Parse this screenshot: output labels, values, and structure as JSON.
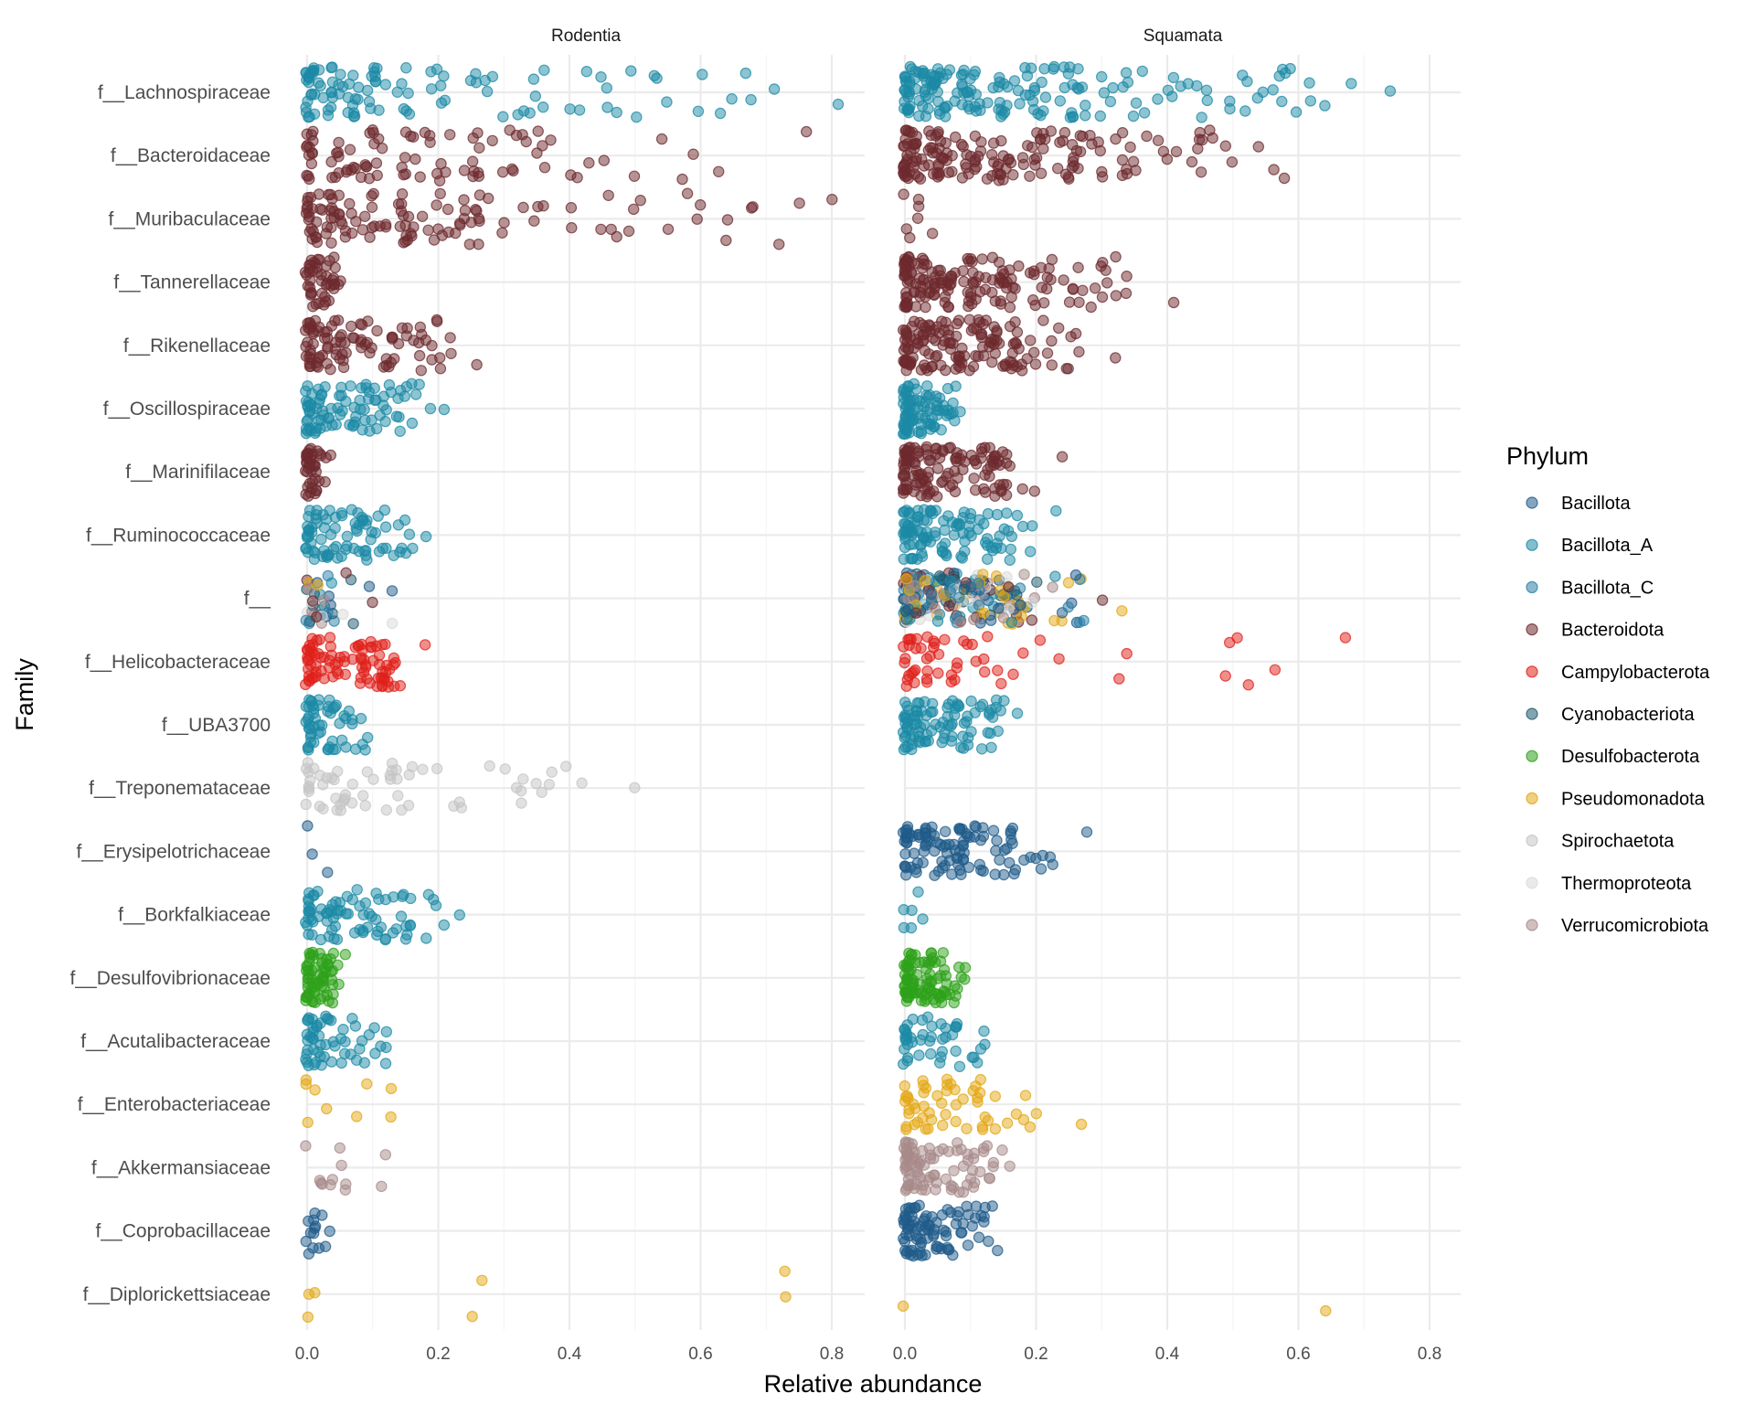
{
  "chart_data": {
    "type": "scatter",
    "subtype": "faceted jitter strip plot",
    "xlabel": "Relative abundance",
    "ylabel": "Family",
    "xlim": [
      0,
      0.8
    ],
    "x_ticks": [
      "0.0",
      "0.2",
      "0.4",
      "0.6",
      "0.8"
    ],
    "grid": true,
    "facets": [
      "Rodentia",
      "Squamata"
    ],
    "families": [
      "f__Lachnospiraceae",
      "f__Bacteroidaceae",
      "f__Muribaculaceae",
      "f__Tannerellaceae",
      "f__Rikenellaceae",
      "f__Oscillospiraceae",
      "f__Marinifilaceae",
      "f__Ruminococcaceae",
      "f__",
      "f__Helicobacteraceae",
      "f__UBA3700",
      "f__Treponemataceae",
      "f__Erysipelotrichaceae",
      "f__Borkfalkiaceae",
      "f__Desulfovibrionaceae",
      "f__Acutalibacteraceae",
      "f__Enterobacteriaceae",
      "f__Akkermansiaceae",
      "f__Coprobacillaceae",
      "f__Diplorickettsiaceae"
    ],
    "legend": {
      "title": "Phylum",
      "position": "right",
      "items": [
        {
          "name": "Bacillota",
          "color": "#1f5b8a"
        },
        {
          "name": "Bacillota_A",
          "color": "#1b8aa6"
        },
        {
          "name": "Bacillota_C",
          "color": "#2a7fa8"
        },
        {
          "name": "Bacteroidota",
          "color": "#6e2a2d"
        },
        {
          "name": "Campylobacterota",
          "color": "#e0201a"
        },
        {
          "name": "Cyanobacteriota",
          "color": "#1f5a6e"
        },
        {
          "name": "Desulfobacterota",
          "color": "#2ea11a"
        },
        {
          "name": "Pseudomonadota",
          "color": "#e3a714"
        },
        {
          "name": "Spirochaetota",
          "color": "#c4c4c4"
        },
        {
          "name": "Thermoproteota",
          "color": "#d9d9d9"
        },
        {
          "name": "Verrucomicrobiota",
          "color": "#a88a8a"
        }
      ]
    },
    "groups": [
      {
        "facet": "Rodentia",
        "family": "f__Lachnospiraceae",
        "phylum": "Bacillota_A",
        "n": 110,
        "x": [
          0.0,
          0.03,
          0.06,
          0.1,
          0.15,
          0.2,
          0.25,
          0.28,
          0.3,
          0.32,
          0.35,
          0.4,
          0.45,
          0.5,
          0.55,
          0.6,
          0.63,
          0.67,
          0.71,
          0.81
        ]
      },
      {
        "facet": "Rodentia",
        "family": "f__Bacteroidaceae",
        "phylum": "Bacteroidota",
        "n": 90,
        "x": [
          0.0,
          0.05,
          0.1,
          0.15,
          0.2,
          0.25,
          0.3,
          0.35,
          0.4,
          0.45,
          0.5,
          0.54,
          0.57,
          0.76
        ]
      },
      {
        "facet": "Rodentia",
        "family": "f__Muribaculaceae",
        "phylum": "Bacteroidota",
        "n": 120,
        "x": [
          0.0,
          0.05,
          0.1,
          0.15,
          0.2,
          0.25,
          0.3,
          0.35,
          0.4,
          0.45,
          0.5,
          0.55,
          0.6,
          0.64,
          0.68,
          0.72,
          0.75,
          0.8
        ]
      },
      {
        "facet": "Rodentia",
        "family": "f__Tannerellaceae",
        "phylum": "Bacteroidota",
        "n": 45,
        "x": [
          0.0,
          0.01,
          0.02,
          0.03,
          0.05
        ]
      },
      {
        "facet": "Rodentia",
        "family": "f__Rikenellaceae",
        "phylum": "Bacteroidota",
        "n": 95,
        "x": [
          0.0,
          0.03,
          0.06,
          0.1,
          0.13,
          0.16,
          0.18,
          0.2,
          0.26
        ]
      },
      {
        "facet": "Rodentia",
        "family": "f__Oscillospiraceae",
        "phylum": "Bacillota_A",
        "n": 90,
        "x": [
          0.0,
          0.03,
          0.06,
          0.1,
          0.13,
          0.16,
          0.19,
          0.21
        ]
      },
      {
        "facet": "Rodentia",
        "family": "f__Marinifilaceae",
        "phylum": "Bacteroidota",
        "n": 40,
        "x": [
          0.0,
          0.01,
          0.02,
          0.03
        ]
      },
      {
        "facet": "Rodentia",
        "family": "f__Ruminococcaceae",
        "phylum": "Bacillota_A",
        "n": 80,
        "x": [
          0.0,
          0.03,
          0.06,
          0.08,
          0.12,
          0.15,
          0.18
        ]
      },
      {
        "facet": "Rodentia",
        "family": "f__",
        "phylum": "mixed",
        "n": 40,
        "x": [
          0.0,
          0.01,
          0.02,
          0.03,
          0.13
        ]
      },
      {
        "facet": "Rodentia",
        "family": "f__Helicobacteraceae",
        "phylum": "Campylobacterota",
        "n": 90,
        "x": [
          0.0,
          0.02,
          0.05,
          0.08,
          0.1,
          0.12,
          0.18
        ]
      },
      {
        "facet": "Rodentia",
        "family": "f__UBA3700",
        "phylum": "Bacillota_A",
        "n": 55,
        "x": [
          0.0,
          0.02,
          0.04,
          0.06,
          0.08
        ]
      },
      {
        "facet": "Rodentia",
        "family": "f__Treponemataceae",
        "phylum": "Spirochaetota",
        "n": 60,
        "x": [
          0.0,
          0.03,
          0.06,
          0.1,
          0.13,
          0.16,
          0.2,
          0.23,
          0.28,
          0.3,
          0.32,
          0.35,
          0.37,
          0.5
        ]
      },
      {
        "facet": "Rodentia",
        "family": "f__Erysipelotrichaceae",
        "phylum": "Bacillota",
        "n": 3,
        "x": [
          0.0,
          0.01,
          0.03
        ]
      },
      {
        "facet": "Rodentia",
        "family": "f__Borkfalkiaceae",
        "phylum": "Bacillota_A",
        "n": 80,
        "x": [
          0.0,
          0.03,
          0.06,
          0.09,
          0.12,
          0.15,
          0.18,
          0.21,
          0.23
        ]
      },
      {
        "facet": "Rodentia",
        "family": "f__Desulfovibrionaceae",
        "phylum": "Desulfobacterota",
        "n": 65,
        "x": [
          0.0,
          0.01,
          0.02,
          0.03,
          0.04,
          0.06
        ]
      },
      {
        "facet": "Rodentia",
        "family": "f__Acutalibacteraceae",
        "phylum": "Bacillota_A",
        "n": 55,
        "x": [
          0.0,
          0.02,
          0.04,
          0.06,
          0.09,
          0.12
        ]
      },
      {
        "facet": "Rodentia",
        "family": "f__Enterobacteriaceae",
        "phylum": "Pseudomonadota",
        "n": 9,
        "x": [
          0.0,
          0.01,
          0.03,
          0.13
        ]
      },
      {
        "facet": "Rodentia",
        "family": "f__Akkermansiaceae",
        "phylum": "Verrucomicrobiota",
        "n": 12,
        "x": [
          0.0,
          0.02,
          0.05,
          0.06,
          0.12
        ]
      },
      {
        "facet": "Rodentia",
        "family": "f__Coprobacillaceae",
        "phylum": "Bacillota",
        "n": 14,
        "x": [
          0.0,
          0.01,
          0.02,
          0.03
        ]
      },
      {
        "facet": "Rodentia",
        "family": "f__Diplorickettsiaceae",
        "phylum": "Pseudomonadota",
        "n": 7,
        "x": [
          0.0,
          0.01,
          0.25,
          0.73
        ]
      },
      {
        "facet": "Squamata",
        "family": "f__Lachnospiraceae",
        "phylum": "Bacillota_A",
        "n": 180,
        "x": [
          0.0,
          0.05,
          0.1,
          0.15,
          0.2,
          0.25,
          0.3,
          0.35,
          0.4,
          0.46,
          0.52,
          0.56,
          0.64,
          0.68,
          0.74
        ]
      },
      {
        "facet": "Squamata",
        "family": "f__Bacteroidaceae",
        "phylum": "Bacteroidota",
        "n": 170,
        "x": [
          0.0,
          0.05,
          0.1,
          0.15,
          0.2,
          0.25,
          0.3,
          0.35,
          0.4,
          0.45,
          0.5,
          0.54,
          0.56,
          0.58
        ]
      },
      {
        "facet": "Squamata",
        "family": "f__Muribaculaceae",
        "phylum": "Bacteroidota",
        "n": 7,
        "x": [
          0.0,
          0.01,
          0.04
        ]
      },
      {
        "facet": "Squamata",
        "family": "f__Tannerellaceae",
        "phylum": "Bacteroidota",
        "n": 160,
        "x": [
          0.0,
          0.03,
          0.06,
          0.1,
          0.13,
          0.16,
          0.19,
          0.25,
          0.34,
          0.41
        ]
      },
      {
        "facet": "Squamata",
        "family": "f__Rikenellaceae",
        "phylum": "Bacteroidota",
        "n": 150,
        "x": [
          0.0,
          0.03,
          0.06,
          0.09,
          0.12,
          0.15,
          0.17,
          0.32
        ]
      },
      {
        "facet": "Squamata",
        "family": "f__Oscillospiraceae",
        "phylum": "Bacillota_A",
        "n": 90,
        "x": [
          0.0,
          0.02,
          0.04,
          0.06,
          0.07
        ]
      },
      {
        "facet": "Squamata",
        "family": "f__Marinifilaceae",
        "phylum": "Bacteroidota",
        "n": 130,
        "x": [
          0.0,
          0.03,
          0.06,
          0.09,
          0.12,
          0.14,
          0.24
        ]
      },
      {
        "facet": "Squamata",
        "family": "f__Ruminococcaceae",
        "phylum": "Bacillota_A",
        "n": 110,
        "x": [
          0.0,
          0.03,
          0.06,
          0.09,
          0.12,
          0.16,
          0.23
        ]
      },
      {
        "facet": "Squamata",
        "family": "f__",
        "phylum": "mixed",
        "n": 240,
        "x": [
          0.0,
          0.03,
          0.06,
          0.09,
          0.12,
          0.16,
          0.2,
          0.24,
          0.27,
          0.3,
          0.33
        ]
      },
      {
        "facet": "Squamata",
        "family": "f__Helicobacteraceae",
        "phylum": "Campylobacterota",
        "n": 55,
        "x": [
          0.0,
          0.02,
          0.04,
          0.06,
          0.08,
          0.11,
          0.18,
          0.67
        ]
      },
      {
        "facet": "Squamata",
        "family": "f__UBA3700",
        "phylum": "Bacillota_A",
        "n": 95,
        "x": [
          0.0,
          0.03,
          0.06,
          0.09,
          0.12,
          0.14,
          0.17
        ]
      },
      {
        "facet": "Squamata",
        "family": "f__Erysipelotrichaceae",
        "phylum": "Bacillota",
        "n": 110,
        "x": [
          0.0,
          0.03,
          0.06,
          0.09,
          0.12,
          0.15,
          0.18,
          0.21,
          0.28
        ]
      },
      {
        "facet": "Squamata",
        "family": "f__Borkfalkiaceae",
        "phylum": "Bacillota_A",
        "n": 6,
        "x": [
          0.0,
          0.01,
          0.02
        ]
      },
      {
        "facet": "Squamata",
        "family": "f__Desulfovibrionaceae",
        "phylum": "Desulfobacterota",
        "n": 95,
        "x": [
          0.0,
          0.02,
          0.04,
          0.06,
          0.08
        ]
      },
      {
        "facet": "Squamata",
        "family": "f__Acutalibacteraceae",
        "phylum": "Bacillota_A",
        "n": 45,
        "x": [
          0.0,
          0.02,
          0.04,
          0.06,
          0.08,
          0.11,
          0.12
        ]
      },
      {
        "facet": "Squamata",
        "family": "f__Enterobacteriaceae",
        "phylum": "Pseudomonadota",
        "n": 55,
        "x": [
          0.0,
          0.02,
          0.04,
          0.06,
          0.08,
          0.11,
          0.14,
          0.17,
          0.19,
          0.27
        ]
      },
      {
        "facet": "Squamata",
        "family": "f__Akkermansiaceae",
        "phylum": "Verrucomicrobiota",
        "n": 85,
        "x": [
          0.0,
          0.02,
          0.04,
          0.06,
          0.08,
          0.1,
          0.15,
          0.16
        ]
      },
      {
        "facet": "Squamata",
        "family": "f__Coprobacillaceae",
        "phylum": "Bacillota",
        "n": 90,
        "x": [
          0.0,
          0.02,
          0.04,
          0.06,
          0.08,
          0.12,
          0.14
        ]
      },
      {
        "facet": "Squamata",
        "family": "f__Diplorickettsiaceae",
        "phylum": "Pseudomonadota",
        "n": 2,
        "x": [
          0.0,
          0.64
        ]
      }
    ]
  }
}
